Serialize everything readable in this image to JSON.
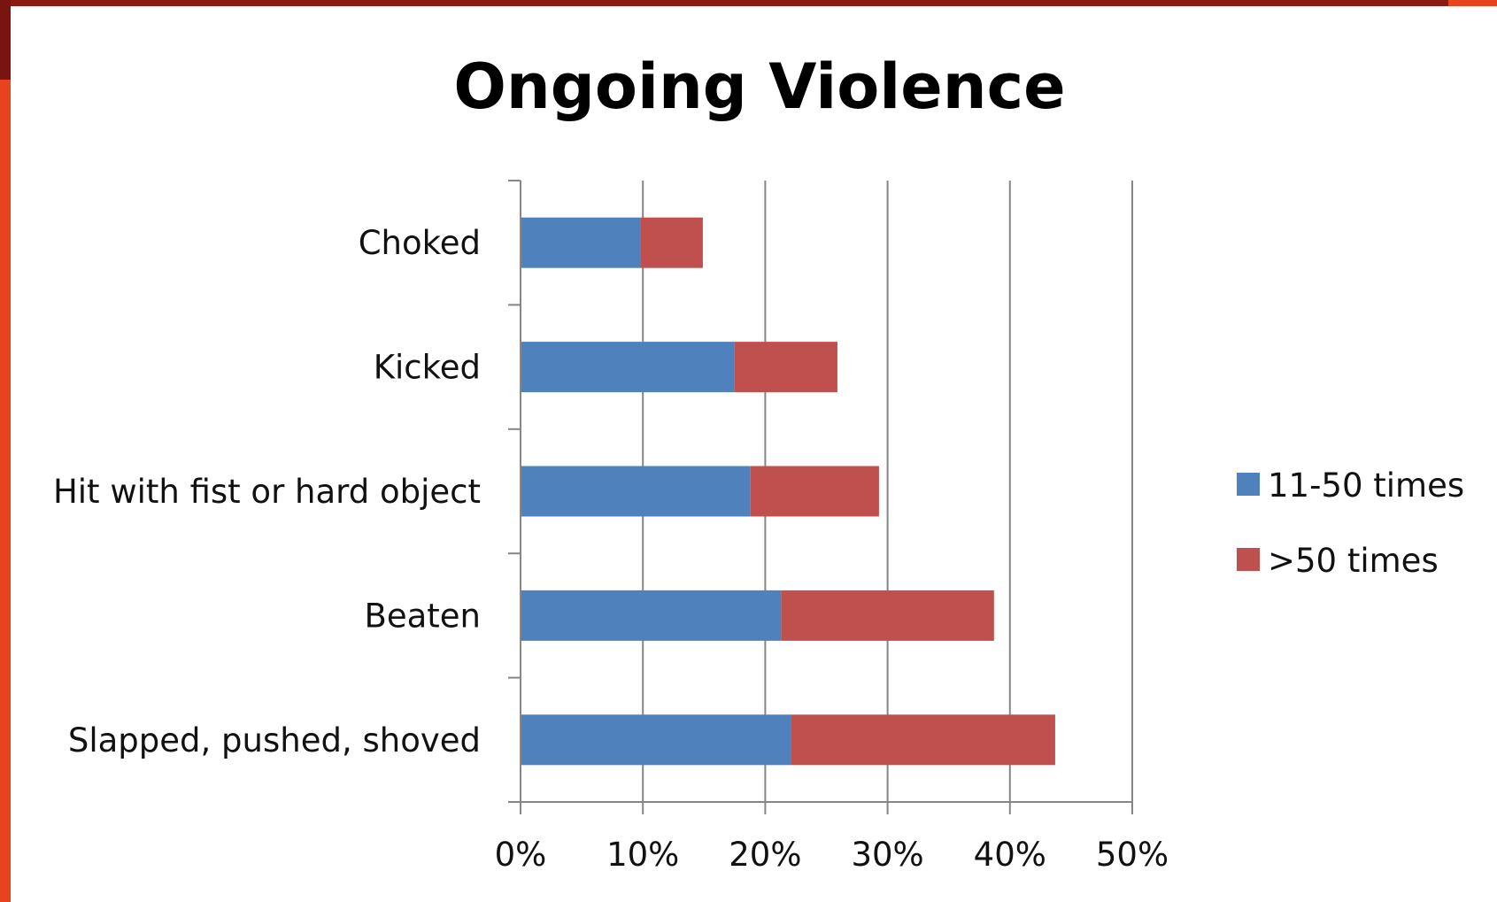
{
  "chart_data": {
    "type": "bar",
    "orientation": "horizontal",
    "stacked": true,
    "title": "Ongoing Violence",
    "categories": [
      "Choked",
      "Kicked",
      "Hit with fist or hard object",
      "Beaten",
      "Slapped, pushed, shoved"
    ],
    "series": [
      {
        "name": "11-50 times",
        "color": "#4f81bd",
        "values": [
          9.8,
          17.5,
          18.8,
          21.3,
          22.1
        ]
      },
      {
        "name": ">50 times",
        "color": "#c0504d",
        "values": [
          5.1,
          8.4,
          10.5,
          17.4,
          21.6
        ]
      }
    ],
    "xlim": [
      0,
      50
    ],
    "xticks": [
      0,
      10,
      20,
      30,
      40,
      50
    ],
    "xtick_labels": [
      "0%",
      "10%",
      "20%",
      "30%",
      "40%",
      "50%"
    ],
    "grid": "vertical",
    "legend": "right"
  }
}
